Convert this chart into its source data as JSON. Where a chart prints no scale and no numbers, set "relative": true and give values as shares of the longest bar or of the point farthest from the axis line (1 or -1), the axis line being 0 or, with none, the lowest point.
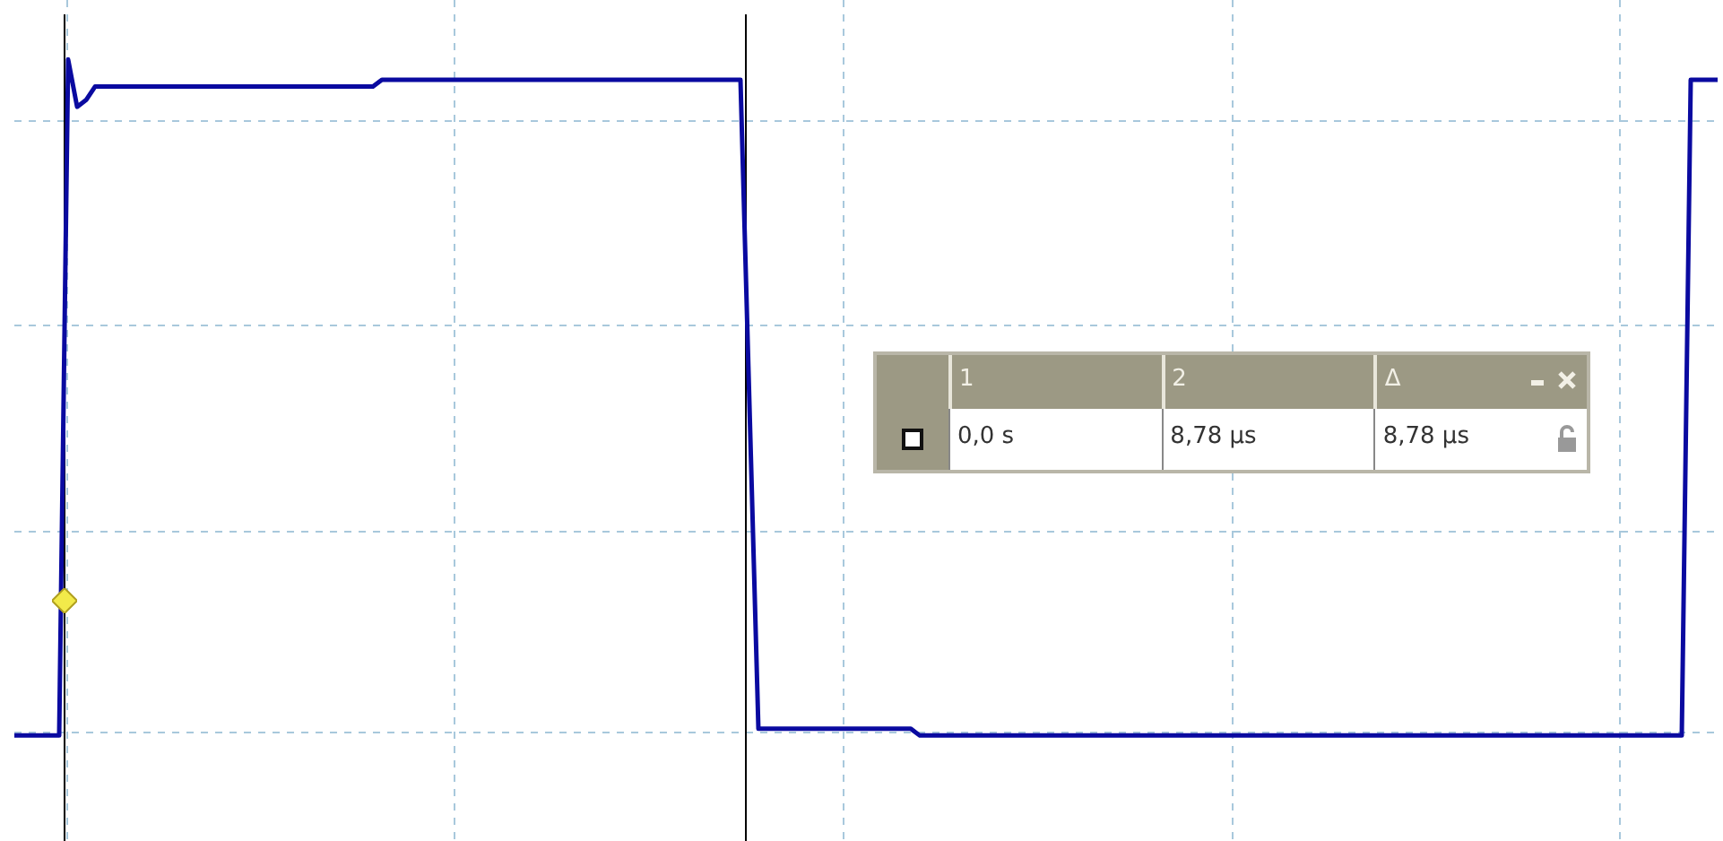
{
  "chart_data": {
    "type": "line",
    "relative": true,
    "tick_labels": false,
    "grid": true,
    "color": "#0a0aa0",
    "categories": [
      null,
      null,
      null,
      null,
      null,
      null,
      null,
      null,
      null,
      null,
      null,
      null,
      null,
      null,
      null,
      null,
      null,
      null,
      null,
      null,
      null,
      null,
      null,
      null,
      null,
      null,
      null,
      null,
      null,
      null,
      null,
      null,
      null,
      null,
      null,
      null,
      null,
      null,
      null,
      null,
      null,
      null,
      null,
      null,
      null,
      null,
      null,
      null,
      null,
      null,
      null,
      null,
      null,
      null,
      null,
      null,
      null,
      null,
      null,
      null,
      null,
      null,
      null,
      null,
      null,
      null,
      null,
      null,
      null,
      null,
      null,
      null,
      null,
      null,
      null,
      null,
      null,
      null,
      null,
      null,
      null,
      null,
      null,
      null,
      null,
      null,
      null,
      null,
      null,
      null,
      null,
      null,
      null,
      null,
      null,
      null,
      null,
      null,
      null,
      null,
      null,
      null,
      null,
      null,
      null,
      null,
      null,
      null,
      null,
      null,
      null,
      null,
      null,
      null,
      null,
      null,
      null,
      null,
      null,
      null,
      null,
      null,
      null,
      null,
      null,
      null,
      null,
      null,
      null,
      null,
      null,
      null,
      null,
      null,
      null,
      null,
      null,
      null,
      null,
      null,
      null,
      null,
      null,
      null,
      null,
      null,
      null,
      null,
      null,
      null,
      null,
      null,
      null,
      null,
      null,
      null,
      null,
      null,
      null,
      null,
      null,
      null,
      null,
      null,
      null,
      null,
      null,
      null,
      null,
      null,
      null,
      null,
      null,
      null,
      null,
      null,
      null,
      null,
      null,
      null,
      null,
      null,
      null,
      null,
      null,
      null,
      null,
      null,
      null,
      null,
      null
    ],
    "values": [
      0,
      0,
      0,
      0,
      0,
      0,
      1.0,
      0.93,
      0.94,
      0.96,
      0.96,
      0.96,
      0.96,
      0.96,
      0.96,
      0.96,
      0.96,
      0.96,
      0.96,
      0.96,
      0.96,
      0.96,
      0.96,
      0.96,
      0.96,
      0.96,
      0.96,
      0.96,
      0.96,
      0.96,
      0.96,
      0.96,
      0.96,
      0.96,
      0.96,
      0.96,
      0.96,
      0.96,
      0.96,
      0.96,
      0.96,
      0.97,
      0.97,
      0.97,
      0.97,
      0.97,
      0.97,
      0.97,
      0.97,
      0.97,
      0.97,
      0.97,
      0.97,
      0.97,
      0.97,
      0.97,
      0.97,
      0.97,
      0.97,
      0.97,
      0.97,
      0.97,
      0.97,
      0.97,
      0.97,
      0.97,
      0.97,
      0.97,
      0.97,
      0.97,
      0.97,
      0.97,
      0.97,
      0.97,
      0.97,
      0.97,
      0.97,
      0.97,
      0.97,
      0.97,
      0.97,
      0.97,
      0.49,
      0.01,
      0.01,
      0.01,
      0.01,
      0.01,
      0.01,
      0.01,
      0.01,
      0.01,
      0.01,
      0.01,
      0.01,
      0.01,
      0.01,
      0.01,
      0.01,
      0.01,
      0.01,
      0,
      0,
      0,
      0,
      0,
      0,
      0,
      0,
      0,
      0,
      0,
      0,
      0,
      0,
      0,
      0,
      0,
      0,
      0,
      0,
      0,
      0,
      0,
      0,
      0,
      0,
      0,
      0,
      0,
      0,
      0,
      0,
      0,
      0,
      0,
      0,
      0,
      0,
      0,
      0,
      0,
      0,
      0,
      0,
      0,
      0,
      0,
      0,
      0,
      0,
      0,
      0,
      0,
      0,
      0,
      0,
      0,
      0,
      0,
      0,
      0,
      0,
      0,
      0,
      0,
      0,
      0,
      0,
      0,
      0,
      0,
      0,
      0,
      0,
      0,
      0,
      0,
      0,
      0,
      0,
      0,
      0,
      0,
      0,
      0,
      0,
      0.97,
      0.97,
      0.97,
      0.97
    ],
    "annotations": [
      "1",
      "2",
      "Δ",
      "0,0 s",
      "8,78 µs",
      "8,78 µs"
    ]
  }
}
